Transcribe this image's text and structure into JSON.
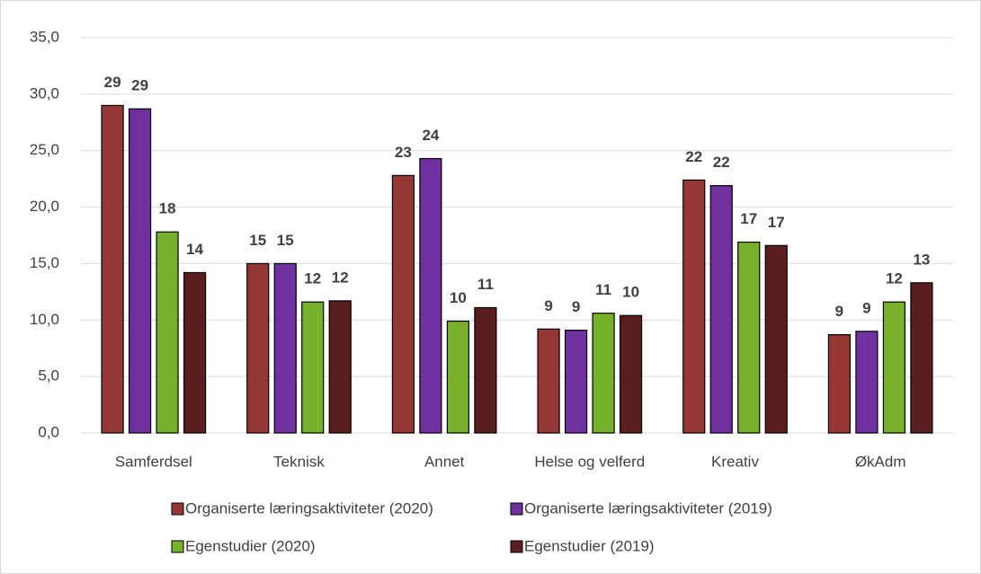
{
  "chart_data": {
    "type": "bar",
    "categories": [
      "Samferdsel",
      "Teknisk",
      "Annet",
      "Helse og velferd",
      "Kreativ",
      "ØkAdm"
    ],
    "series": [
      {
        "name": "Organiserte læringsaktiviteter (2020)",
        "color": "#953735",
        "values": [
          29.0,
          15.0,
          22.8,
          9.2,
          22.4,
          8.7
        ],
        "value_labels": [
          "29",
          "15",
          "23",
          "9",
          "22",
          "9"
        ]
      },
      {
        "name": "Organiserte læringsaktiviteter (2019)",
        "color": "#7030a0",
        "values": [
          28.7,
          15.0,
          24.3,
          9.1,
          21.9,
          9.0
        ],
        "value_labels": [
          "29",
          "15",
          "24",
          "9",
          "22",
          "9"
        ]
      },
      {
        "name": "Egenstudier (2020)",
        "color": "#77b02a",
        "values": [
          17.8,
          11.6,
          9.9,
          10.6,
          16.9,
          11.6
        ],
        "value_labels": [
          "18",
          "12",
          "10",
          "11",
          "17",
          "12"
        ]
      },
      {
        "name": "Egenstudier (2019)",
        "color": "#5a1e1e",
        "values": [
          14.2,
          11.7,
          11.1,
          10.4,
          16.6,
          13.3
        ],
        "value_labels": [
          "14",
          "12",
          "11",
          "10",
          "17",
          "13"
        ]
      }
    ],
    "ylim": [
      0,
      35
    ],
    "yticks": [
      {
        "value": 0,
        "label": "0,0"
      },
      {
        "value": 5,
        "label": "5,0"
      },
      {
        "value": 10,
        "label": "10,0"
      },
      {
        "value": 15,
        "label": "15,0"
      },
      {
        "value": 20,
        "label": "20,0"
      },
      {
        "value": 25,
        "label": "25,0"
      },
      {
        "value": 30,
        "label": "30,0"
      },
      {
        "value": 35,
        "label": "35,0"
      }
    ],
    "grid": true
  }
}
